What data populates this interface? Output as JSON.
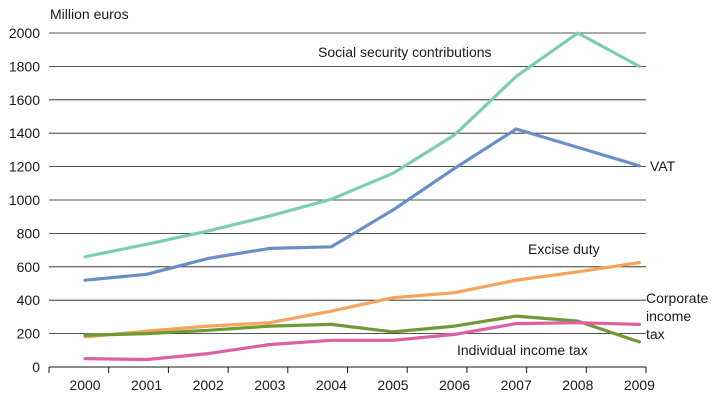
{
  "chart_data": {
    "type": "line",
    "ylabel": "Million euros",
    "x": [
      "2000",
      "2001",
      "2002",
      "2003",
      "2004",
      "2005",
      "2006",
      "2007",
      "2008",
      "2009"
    ],
    "ylim": [
      0,
      2000
    ],
    "yticks": [
      0,
      200,
      400,
      600,
      800,
      1000,
      1200,
      1400,
      1600,
      1800,
      2000
    ],
    "grid": true,
    "series": [
      {
        "name": "Social security contributions",
        "color": "#7ecdb3",
        "values": [
          660,
          735,
          815,
          905,
          1005,
          1160,
          1390,
          1740,
          2000,
          1800
        ]
      },
      {
        "name": "VAT",
        "color": "#6a8ec7",
        "values": [
          520,
          555,
          650,
          710,
          720,
          940,
          1190,
          1425,
          1315,
          1205
        ]
      },
      {
        "name": "Excise duty",
        "color": "#f6a35e",
        "values": [
          180,
          215,
          245,
          265,
          335,
          415,
          445,
          520,
          570,
          625
        ]
      },
      {
        "name": "Corporate income tax",
        "color": "#6f9a35",
        "values": [
          190,
          200,
          220,
          245,
          255,
          210,
          245,
          305,
          275,
          150
        ]
      },
      {
        "name": "Individual income tax",
        "color": "#de5fa3",
        "values": [
          50,
          45,
          80,
          135,
          160,
          160,
          195,
          260,
          265,
          255
        ]
      }
    ]
  }
}
